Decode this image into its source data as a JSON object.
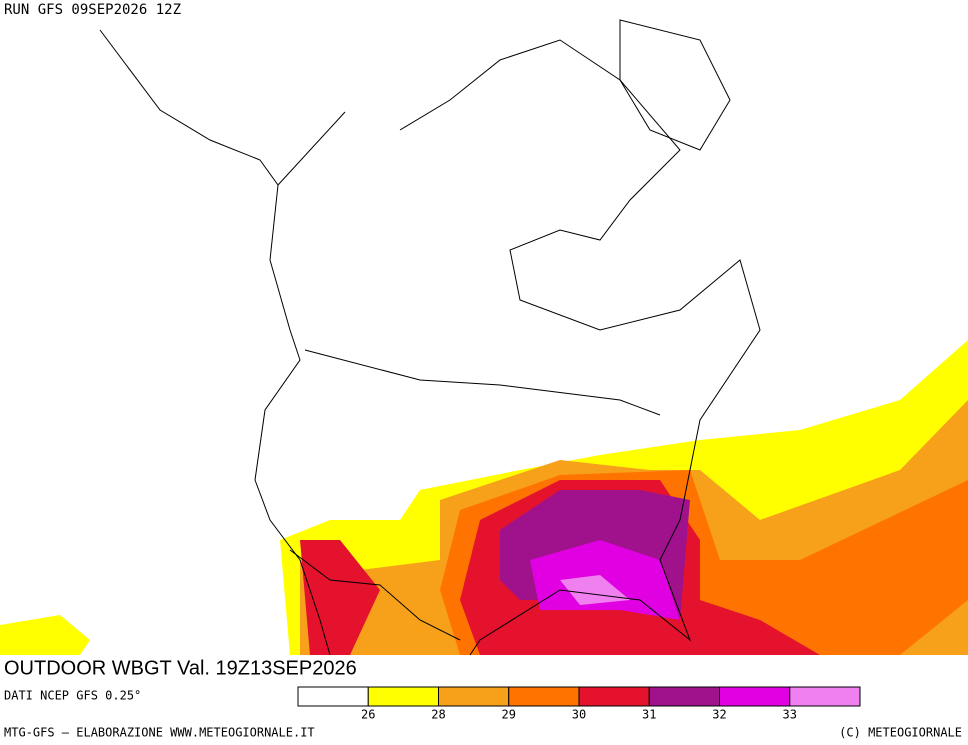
{
  "header": {
    "run": "RUN GFS 09SEP2026 12Z"
  },
  "map": {
    "title": "OUTDOOR WBGT Val. 19Z13SEP2026"
  },
  "legend": {
    "source": "DATI NCEP GFS 0.25°",
    "thresholds": [
      26,
      28,
      29,
      30,
      31,
      32,
      33
    ],
    "colors": [
      "#ffffff",
      "#ffff00",
      "#f7a11a",
      "#ff7400",
      "#e4122c",
      "#a0128c",
      "#e100e1",
      "#f07ff0"
    ]
  },
  "footer": {
    "left": "MTG-GFS – ELABORAZIONE WWW.METEOGIORNALE.IT",
    "right": "(C) METEOGIORNALE"
  }
}
